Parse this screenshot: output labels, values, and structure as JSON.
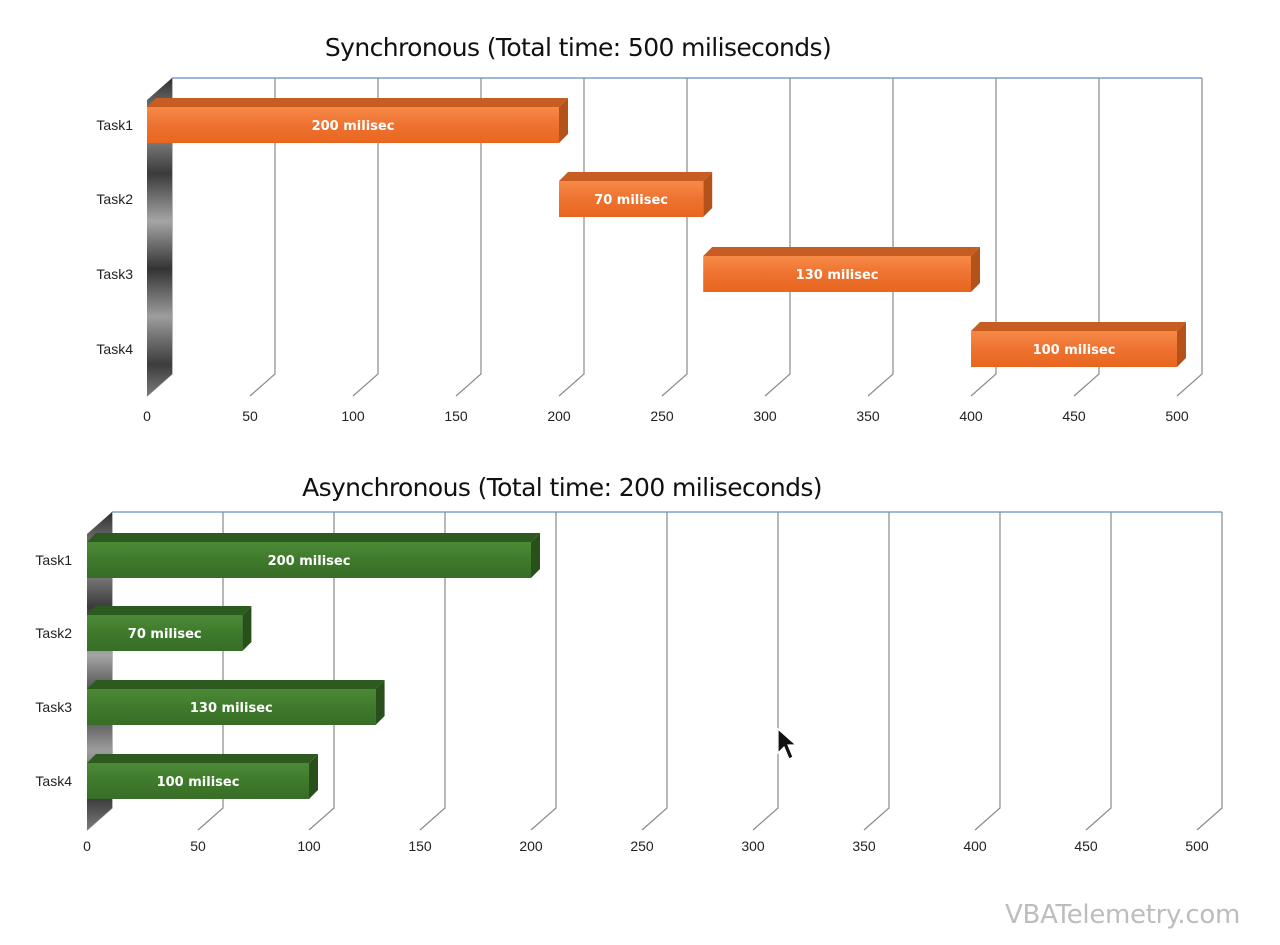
{
  "chart_data": [
    {
      "type": "bar",
      "orientation": "horizontal",
      "stacked": true,
      "title": "Synchronous (Total time: 500 miliseconds)",
      "categories": [
        "Task1",
        "Task2",
        "Task3",
        "Task4"
      ],
      "series": [
        {
          "role": "offset",
          "visible": false,
          "values": [
            0,
            200,
            270,
            400
          ]
        },
        {
          "role": "duration",
          "color": "#ee7230",
          "values": [
            200,
            70,
            130,
            100
          ]
        }
      ],
      "data_labels": [
        "200 milisec",
        "70 milisec",
        "130 milisec",
        "100 milisec"
      ],
      "xlim": [
        0,
        500
      ],
      "xticks": [
        0,
        50,
        100,
        150,
        200,
        250,
        300,
        350,
        400,
        450,
        500
      ],
      "grid": true,
      "xlabel": "",
      "ylabel": ""
    },
    {
      "type": "bar",
      "orientation": "horizontal",
      "stacked": true,
      "title": "Asynchronous (Total time: 200 miliseconds)",
      "categories": [
        "Task1",
        "Task2",
        "Task3",
        "Task4"
      ],
      "series": [
        {
          "role": "offset",
          "visible": false,
          "values": [
            0,
            0,
            0,
            0
          ]
        },
        {
          "role": "duration",
          "color": "#3f7a2c",
          "values": [
            200,
            70,
            130,
            100
          ]
        }
      ],
      "data_labels": [
        "200 milisec",
        "70 milisec",
        "130 milisec",
        "100 milisec"
      ],
      "xlim": [
        0,
        500
      ],
      "xticks": [
        0,
        50,
        100,
        150,
        200,
        250,
        300,
        350,
        400,
        450,
        500
      ],
      "grid": true,
      "xlabel": "",
      "ylabel": ""
    }
  ],
  "watermark": "VBATelemetry.com",
  "cursor_icon": "arrow-cursor-icon"
}
